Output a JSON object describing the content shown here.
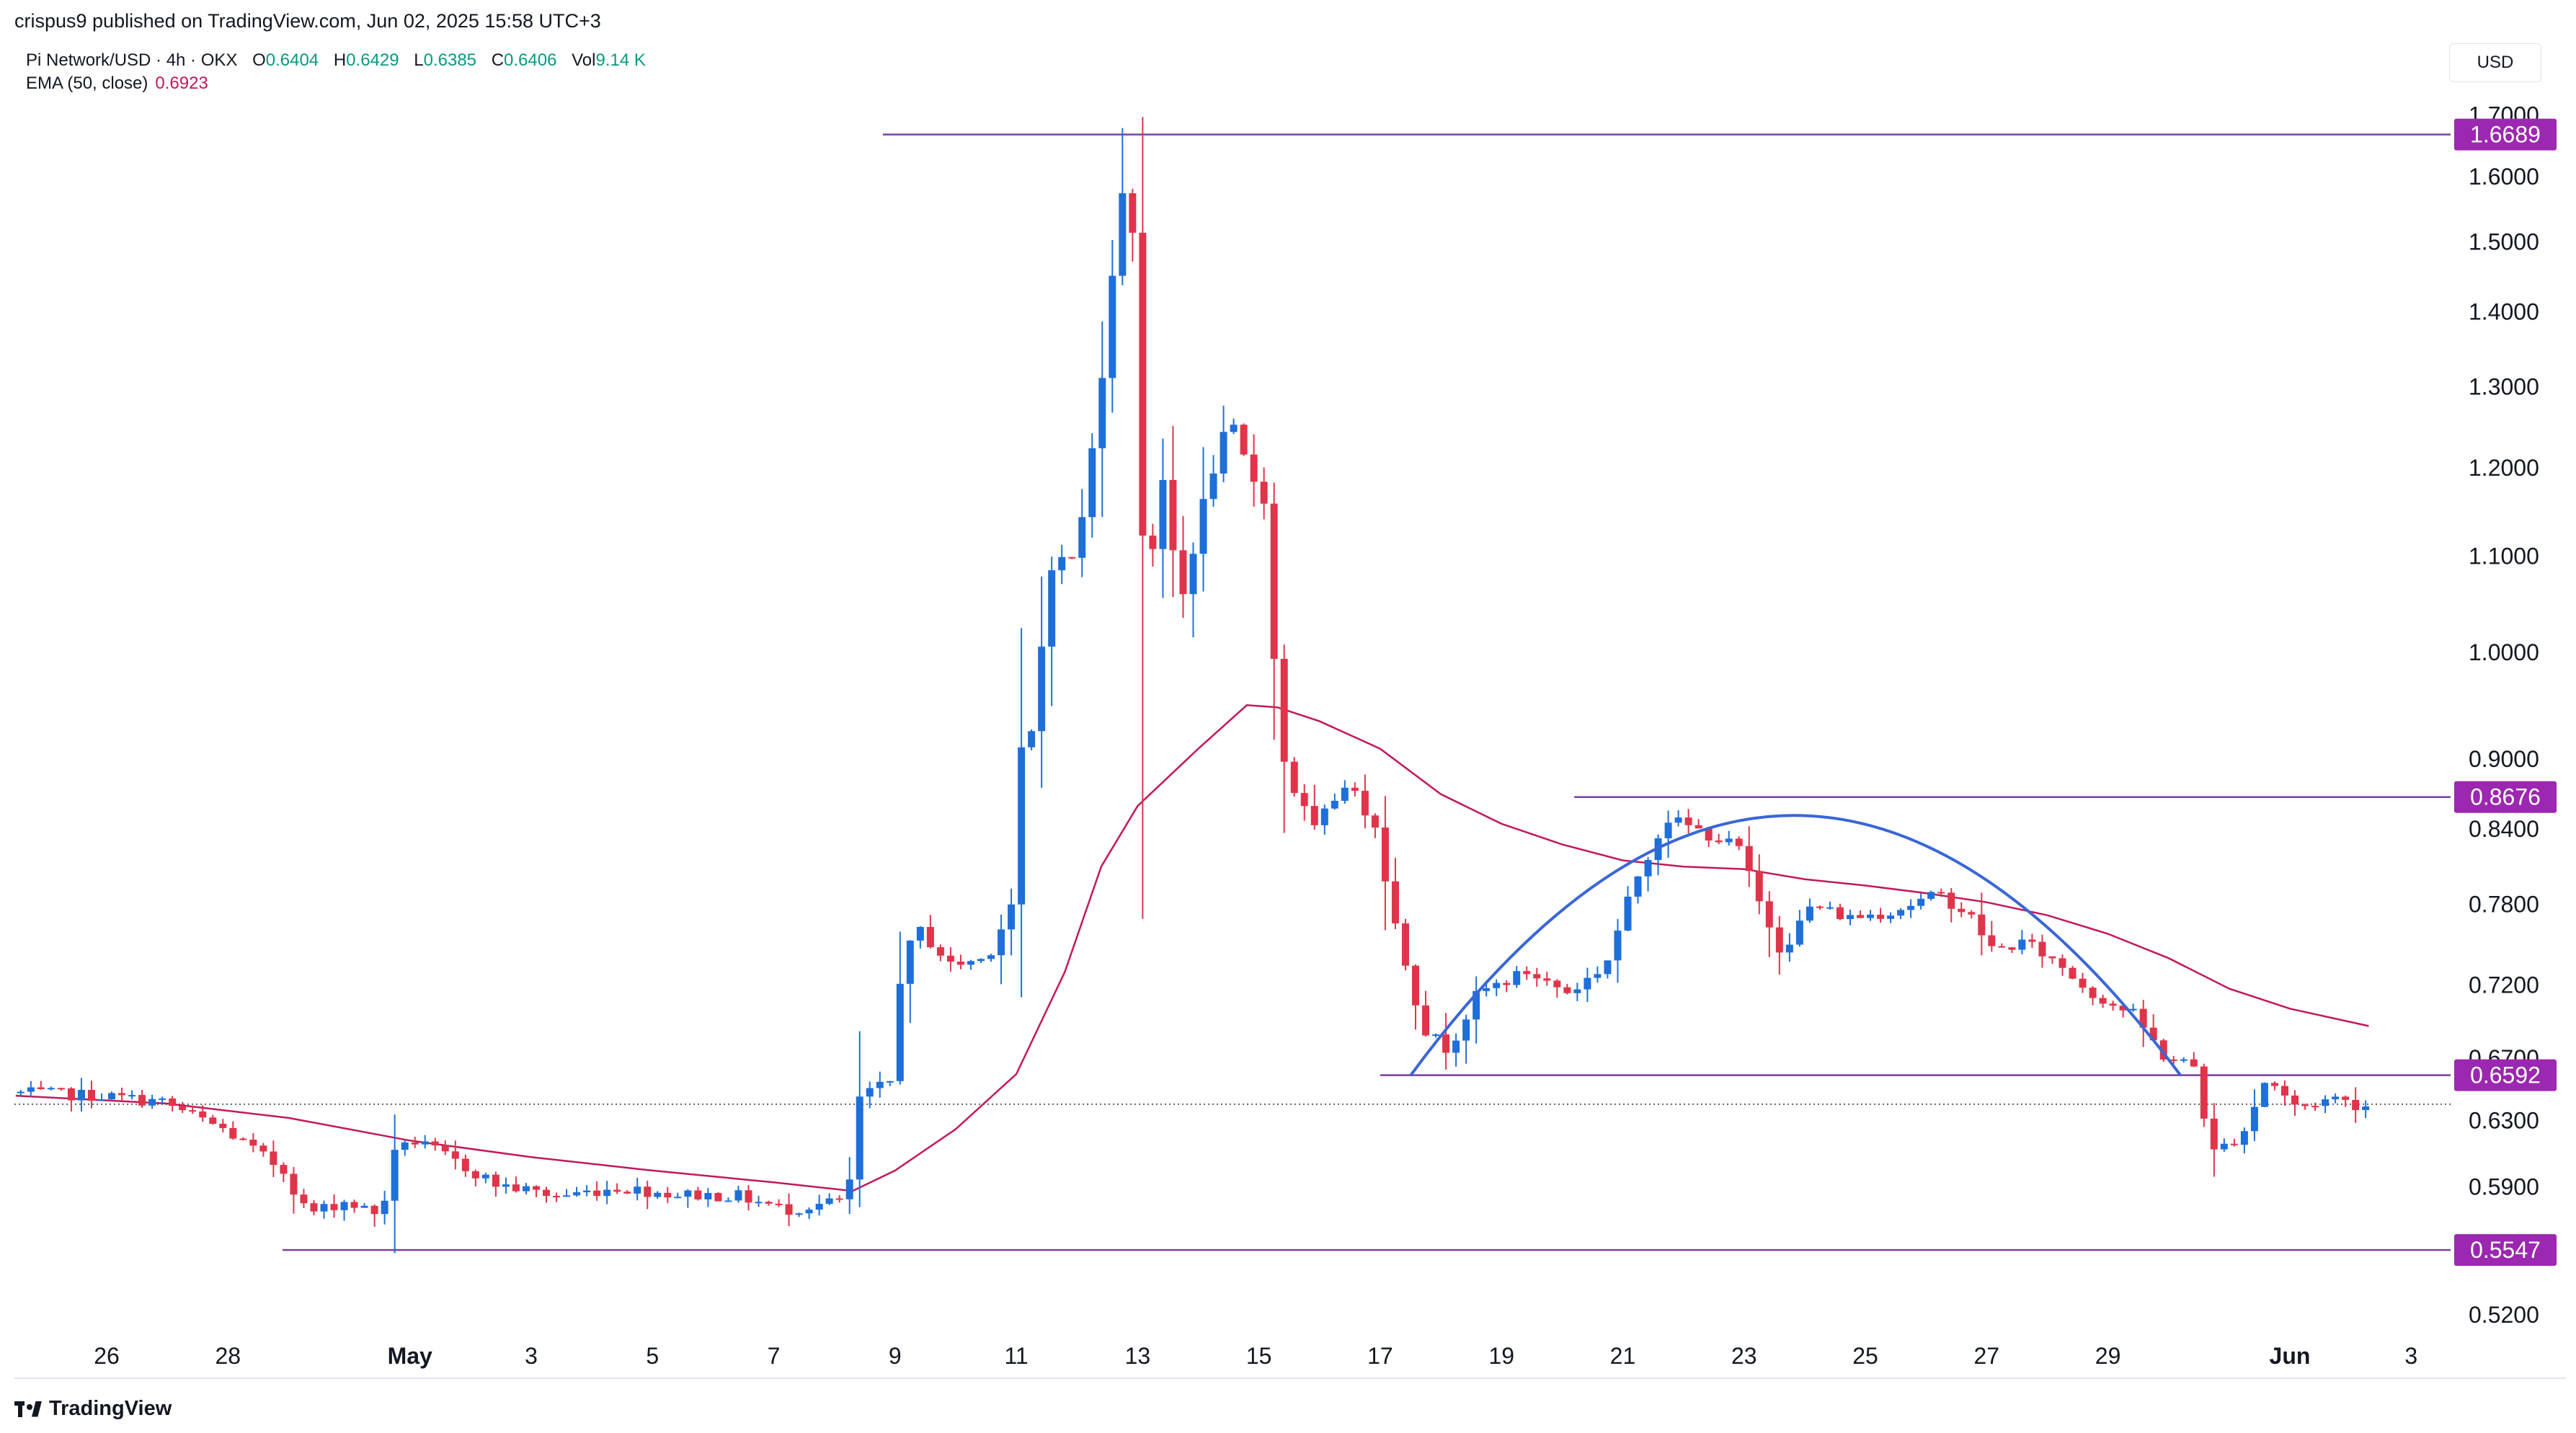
{
  "header": {
    "publisher_text": "crispus9 published on TradingView.com, Jun 02, 2025 15:58 UTC+3"
  },
  "legend": {
    "symbol": "Pi Network/USD · 4h · OKX",
    "open_label": "O",
    "open": "0.6404",
    "high_label": "H",
    "high": "0.6429",
    "low_label": "L",
    "low": "0.6385",
    "close_label": "C",
    "close": "0.6406",
    "vol_label": "Vol",
    "vol": "9.14 K",
    "ema_label": "EMA (50, close)",
    "ema_value": "0.6923"
  },
  "currency_button": "USD",
  "footer": {
    "logo_text": "TradingView"
  },
  "colors": {
    "up": "#1e6fd9",
    "down": "#e0344a",
    "ema": "#c2185b",
    "level_line": "#7b3fa0",
    "level_badge": "#9c27b0",
    "arc": "#3a66d6",
    "grid": "#f0f3fa"
  },
  "chart_data": {
    "type": "candlestick",
    "title": "Pi Network/USD · 4h · OKX",
    "y_scale": "log",
    "ylim": [
      0.5,
      1.75
    ],
    "y_ticks": [
      "1.7000",
      "1.6000",
      "1.5000",
      "1.4000",
      "1.3000",
      "1.2000",
      "1.1000",
      "1.0000",
      "0.9000",
      "0.8400",
      "0.7800",
      "0.7200",
      "0.6700",
      "0.6300",
      "0.5900",
      "0.5200"
    ],
    "x_ticks": [
      {
        "label": "26",
        "day": 26
      },
      {
        "label": "28",
        "day": 28
      },
      {
        "label": "May",
        "day": 31,
        "bold": true
      },
      {
        "label": "3",
        "day": 33
      },
      {
        "label": "5",
        "day": 35
      },
      {
        "label": "7",
        "day": 37
      },
      {
        "label": "9",
        "day": 39
      },
      {
        "label": "11",
        "day": 41
      },
      {
        "label": "13",
        "day": 43
      },
      {
        "label": "15",
        "day": 45
      },
      {
        "label": "17",
        "day": 47
      },
      {
        "label": "19",
        "day": 49
      },
      {
        "label": "21",
        "day": 51
      },
      {
        "label": "23",
        "day": 53
      },
      {
        "label": "25",
        "day": 55
      },
      {
        "label": "27",
        "day": 57
      },
      {
        "label": "29",
        "day": 59
      },
      {
        "label": "Jun",
        "day": 62,
        "bold": true
      },
      {
        "label": "3",
        "day": 64
      }
    ],
    "anchors": [
      {
        "day": 24.5,
        "price": 0.648
      },
      {
        "day": 26.0,
        "price": 0.646
      },
      {
        "day": 27.0,
        "price": 0.642
      },
      {
        "day": 28.0,
        "price": 0.625
      },
      {
        "day": 29.0,
        "price": 0.6
      },
      {
        "day": 29.4,
        "price": 0.575
      },
      {
        "day": 30.0,
        "price": 0.582
      },
      {
        "day": 30.6,
        "price": 0.574
      },
      {
        "day": 30.9,
        "price": 0.62
      },
      {
        "day": 31.5,
        "price": 0.612
      },
      {
        "day": 32.5,
        "price": 0.592
      },
      {
        "day": 33.5,
        "price": 0.585
      },
      {
        "day": 34.5,
        "price": 0.59
      },
      {
        "day": 35.5,
        "price": 0.586
      },
      {
        "day": 36.5,
        "price": 0.585
      },
      {
        "day": 37.3,
        "price": 0.577
      },
      {
        "day": 38.3,
        "price": 0.583
      },
      {
        "day": 38.5,
        "price": 0.644
      },
      {
        "day": 39.0,
        "price": 0.655
      },
      {
        "day": 39.2,
        "price": 0.74
      },
      {
        "day": 39.5,
        "price": 0.76
      },
      {
        "day": 40.0,
        "price": 0.735
      },
      {
        "day": 40.6,
        "price": 0.74
      },
      {
        "day": 41.0,
        "price": 0.78
      },
      {
        "day": 41.1,
        "price": 0.9
      },
      {
        "day": 41.4,
        "price": 0.93
      },
      {
        "day": 41.6,
        "price": 1.09
      },
      {
        "day": 42.0,
        "price": 1.1
      },
      {
        "day": 42.2,
        "price": 1.15
      },
      {
        "day": 42.5,
        "price": 1.32
      },
      {
        "day": 42.8,
        "price": 1.58
      },
      {
        "day": 43.0,
        "price": 1.52
      },
      {
        "day": 43.2,
        "price": 1.06
      },
      {
        "day": 43.5,
        "price": 1.18
      },
      {
        "day": 43.8,
        "price": 1.05
      },
      {
        "day": 44.2,
        "price": 1.17
      },
      {
        "day": 44.6,
        "price": 1.26
      },
      {
        "day": 44.9,
        "price": 1.2
      },
      {
        "day": 45.2,
        "price": 1.16
      },
      {
        "day": 45.4,
        "price": 0.92
      },
      {
        "day": 45.6,
        "price": 0.88
      },
      {
        "day": 46.0,
        "price": 0.84
      },
      {
        "day": 46.5,
        "price": 0.88
      },
      {
        "day": 47.0,
        "price": 0.845
      },
      {
        "day": 47.3,
        "price": 0.77
      },
      {
        "day": 47.8,
        "price": 0.69
      },
      {
        "day": 48.2,
        "price": 0.676
      },
      {
        "day": 48.7,
        "price": 0.715
      },
      {
        "day": 49.5,
        "price": 0.73
      },
      {
        "day": 50.2,
        "price": 0.715
      },
      {
        "day": 50.8,
        "price": 0.735
      },
      {
        "day": 51.3,
        "price": 0.8
      },
      {
        "day": 51.8,
        "price": 0.85
      },
      {
        "day": 52.3,
        "price": 0.84
      },
      {
        "day": 53.0,
        "price": 0.825
      },
      {
        "day": 53.3,
        "price": 0.785
      },
      {
        "day": 53.7,
        "price": 0.745
      },
      {
        "day": 54.2,
        "price": 0.78
      },
      {
        "day": 54.8,
        "price": 0.77
      },
      {
        "day": 55.5,
        "price": 0.775
      },
      {
        "day": 56.3,
        "price": 0.788
      },
      {
        "day": 56.8,
        "price": 0.772
      },
      {
        "day": 57.2,
        "price": 0.745
      },
      {
        "day": 57.7,
        "price": 0.752
      },
      {
        "day": 58.3,
        "price": 0.735
      },
      {
        "day": 58.8,
        "price": 0.715
      },
      {
        "day": 59.5,
        "price": 0.7
      },
      {
        "day": 60.0,
        "price": 0.672
      },
      {
        "day": 60.5,
        "price": 0.665
      },
      {
        "day": 60.8,
        "price": 0.61
      },
      {
        "day": 61.3,
        "price": 0.622
      },
      {
        "day": 61.7,
        "price": 0.658
      },
      {
        "day": 62.2,
        "price": 0.638
      },
      {
        "day": 62.8,
        "price": 0.645
      },
      {
        "day": 63.2,
        "price": 0.64
      }
    ],
    "ema": [
      {
        "day": 24.5,
        "value": 0.646
      },
      {
        "day": 27.0,
        "value": 0.641
      },
      {
        "day": 29.0,
        "value": 0.632
      },
      {
        "day": 31.0,
        "value": 0.618
      },
      {
        "day": 33.0,
        "value": 0.608
      },
      {
        "day": 35.0,
        "value": 0.6
      },
      {
        "day": 37.0,
        "value": 0.593
      },
      {
        "day": 38.3,
        "value": 0.588
      },
      {
        "day": 39.0,
        "value": 0.6
      },
      {
        "day": 40.0,
        "value": 0.625
      },
      {
        "day": 41.0,
        "value": 0.66
      },
      {
        "day": 41.8,
        "value": 0.73
      },
      {
        "day": 42.4,
        "value": 0.81
      },
      {
        "day": 43.0,
        "value": 0.86
      },
      {
        "day": 44.0,
        "value": 0.91
      },
      {
        "day": 44.8,
        "value": 0.95
      },
      {
        "day": 45.3,
        "value": 0.948
      },
      {
        "day": 46.0,
        "value": 0.935
      },
      {
        "day": 47.0,
        "value": 0.91
      },
      {
        "day": 48.0,
        "value": 0.87
      },
      {
        "day": 49.0,
        "value": 0.845
      },
      {
        "day": 50.0,
        "value": 0.828
      },
      {
        "day": 51.0,
        "value": 0.815
      },
      {
        "day": 52.0,
        "value": 0.81
      },
      {
        "day": 53.0,
        "value": 0.808
      },
      {
        "day": 54.0,
        "value": 0.8
      },
      {
        "day": 55.0,
        "value": 0.795
      },
      {
        "day": 56.0,
        "value": 0.789
      },
      {
        "day": 57.0,
        "value": 0.782
      },
      {
        "day": 58.0,
        "value": 0.772
      },
      {
        "day": 59.0,
        "value": 0.758
      },
      {
        "day": 60.0,
        "value": 0.74
      },
      {
        "day": 61.0,
        "value": 0.718
      },
      {
        "day": 62.0,
        "value": 0.704
      },
      {
        "day": 63.3,
        "value": 0.692
      }
    ],
    "levels": [
      {
        "price": 1.6689,
        "label": "1.6689",
        "from_day": 38.8
      },
      {
        "price": 0.8676,
        "label": "0.8676",
        "from_day": 50.2
      },
      {
        "price": 0.6592,
        "label": "0.6592",
        "from_day": 47.0
      },
      {
        "price": 0.5547,
        "label": "0.5547",
        "from_day": 28.9
      }
    ],
    "current_price": 0.6406,
    "arc": {
      "start_day": 47.5,
      "end_day": 60.2,
      "base_price": 0.659,
      "peak_day": 53.8,
      "peak_price": 0.852
    },
    "grid": false,
    "legend_position": "top-left"
  }
}
